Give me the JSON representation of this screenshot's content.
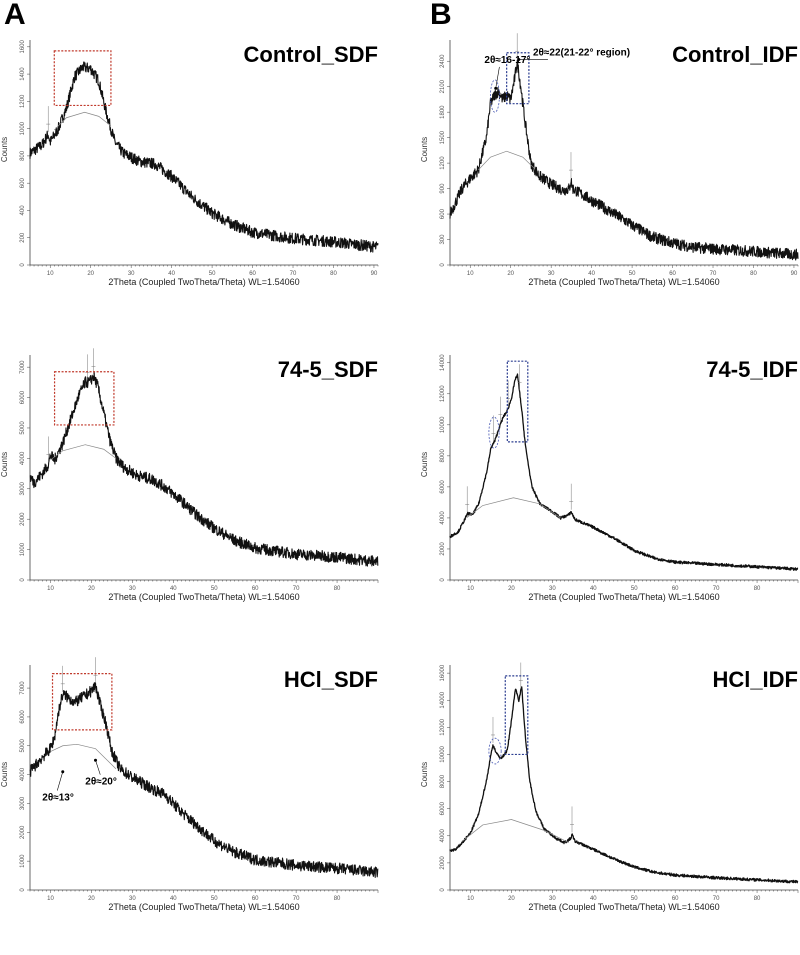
{
  "labels": {
    "A": "A",
    "B": "B"
  },
  "chart_data": [
    {
      "type": "line",
      "title": "Control_SDF",
      "xlabel": "2Theta (Coupled TwoTheta/Theta) WL=1.54060",
      "ylabel": "Counts",
      "xlim": [
        5,
        91
      ],
      "ylim": [
        0,
        1650
      ],
      "xticks": [
        10,
        20,
        30,
        40,
        50,
        60,
        70,
        80,
        90
      ],
      "yticks": [
        0,
        200,
        400,
        600,
        800,
        1000,
        1200,
        1400,
        1600
      ],
      "noisy": true,
      "series": [
        [
          5,
          820
        ],
        [
          8,
          880
        ],
        [
          9.5,
          960
        ],
        [
          10,
          900
        ],
        [
          12,
          1000
        ],
        [
          14,
          1150
        ],
        [
          16,
          1380
        ],
        [
          18,
          1450
        ],
        [
          20,
          1440
        ],
        [
          22,
          1350
        ],
        [
          24,
          1100
        ],
        [
          26,
          900
        ],
        [
          28,
          820
        ],
        [
          32,
          760
        ],
        [
          36,
          740
        ],
        [
          40,
          650
        ],
        [
          45,
          500
        ],
        [
          50,
          380
        ],
        [
          55,
          300
        ],
        [
          60,
          240
        ],
        [
          70,
          195
        ],
        [
          80,
          170
        ],
        [
          91,
          130
        ]
      ],
      "background": [
        [
          11,
          990
        ],
        [
          14,
          1080
        ],
        [
          18.5,
          1120
        ],
        [
          22,
          1090
        ],
        [
          25,
          1020
        ]
      ],
      "peak_markers": [
        9.5
      ],
      "highlight_box": {
        "x": [
          11,
          25
        ],
        "y": [
          1170,
          1570
        ],
        "color": "#c0392b"
      },
      "ellipse": null,
      "annotations": []
    },
    {
      "type": "line",
      "title": "Control_IDF",
      "xlabel": "2Theta (Coupled TwoTheta/Theta) WL=1.54060",
      "ylabel": "Counts",
      "xlim": [
        5,
        91
      ],
      "ylim": [
        0,
        2650
      ],
      "xticks": [
        10,
        20,
        30,
        40,
        50,
        60,
        70,
        80,
        90
      ],
      "yticks": [
        0,
        300,
        600,
        900,
        1200,
        1500,
        1800,
        2100,
        2400
      ],
      "noisy": true,
      "series": [
        [
          5,
          600
        ],
        [
          8,
          900
        ],
        [
          10,
          1020
        ],
        [
          12,
          1120
        ],
        [
          14,
          1500
        ],
        [
          15,
          1900
        ],
        [
          16,
          2000
        ],
        [
          17,
          2050
        ],
        [
          18,
          1950
        ],
        [
          19,
          2000
        ],
        [
          20,
          1950
        ],
        [
          21,
          2200
        ],
        [
          21.6,
          2400
        ],
        [
          22.5,
          2100
        ],
        [
          23.5,
          1700
        ],
        [
          25,
          1200
        ],
        [
          27,
          1050
        ],
        [
          30,
          950
        ],
        [
          33,
          880
        ],
        [
          34.5,
          900
        ],
        [
          34.9,
          1000
        ],
        [
          35.3,
          900
        ],
        [
          40,
          760
        ],
        [
          45,
          620
        ],
        [
          50,
          470
        ],
        [
          55,
          330
        ],
        [
          60,
          260
        ],
        [
          65,
          210
        ],
        [
          70,
          190
        ],
        [
          80,
          160
        ],
        [
          91,
          120
        ]
      ],
      "background": [
        [
          12,
          1120
        ],
        [
          15,
          1270
        ],
        [
          19,
          1340
        ],
        [
          23,
          1270
        ],
        [
          26,
          1130
        ]
      ],
      "peak_markers": [
        21.6,
        34.9
      ],
      "highlight_box": {
        "x": [
          19,
          24.5
        ],
        "y": [
          1900,
          2500
        ],
        "color": "#2c3e91"
      },
      "ellipse": {
        "x": [
          15,
          17.2
        ],
        "y": [
          1800,
          2180
        ],
        "color": "#4a5bb5"
      },
      "annotations": [
        {
          "text": "2θ≈16-17°",
          "x": 13.5,
          "y": 2380,
          "arrow_to": [
            16.3,
            2080
          ]
        },
        {
          "text": "2θ≈22(21-22° region)",
          "x": 25.5,
          "y": 2470,
          "arrow_to": [
            22,
            2420
          ]
        }
      ]
    },
    {
      "type": "line",
      "title": "74-5_SDF",
      "xlabel": "2Theta (Coupled TwoTheta/Theta) WL=1.54060",
      "ylabel": "Counts",
      "xlim": [
        5,
        90
      ],
      "ylim": [
        0,
        7400
      ],
      "xticks": [
        10,
        20,
        30,
        40,
        50,
        60,
        70,
        80
      ],
      "yticks": [
        0,
        1000,
        2000,
        3000,
        4000,
        5000,
        6000,
        7000
      ],
      "noisy": true,
      "series": [
        [
          5,
          3400
        ],
        [
          6,
          3200
        ],
        [
          8,
          3500
        ],
        [
          9.5,
          3800
        ],
        [
          10,
          4100
        ],
        [
          11,
          3950
        ],
        [
          13,
          4500
        ],
        [
          15,
          5300
        ],
        [
          17,
          6100
        ],
        [
          18.5,
          6500
        ],
        [
          19.5,
          6500
        ],
        [
          20.5,
          6700
        ],
        [
          21.5,
          6400
        ],
        [
          23,
          5500
        ],
        [
          24.5,
          4600
        ],
        [
          26,
          4000
        ],
        [
          28,
          3700
        ],
        [
          31,
          3450
        ],
        [
          35,
          3300
        ],
        [
          38,
          3050
        ],
        [
          42,
          2600
        ],
        [
          46,
          2100
        ],
        [
          50,
          1700
        ],
        [
          55,
          1300
        ],
        [
          60,
          1050
        ],
        [
          70,
          850
        ],
        [
          80,
          750
        ],
        [
          90,
          600
        ]
      ],
      "background": [
        [
          10,
          3950
        ],
        [
          13,
          4250
        ],
        [
          18.5,
          4450
        ],
        [
          23,
          4300
        ],
        [
          26,
          4000
        ]
      ],
      "peak_markers": [
        9.5,
        19,
        20.5
      ],
      "highlight_box": {
        "x": [
          11,
          25.5
        ],
        "y": [
          5100,
          6850
        ],
        "color": "#c0392b"
      },
      "ellipse": null,
      "annotations": []
    },
    {
      "type": "line",
      "title": "74-5_IDF",
      "xlabel": "2Theta (Coupled TwoTheta/Theta) WL=1.54060",
      "ylabel": "Counts",
      "xlim": [
        5,
        90
      ],
      "ylim": [
        0,
        14500
      ],
      "xticks": [
        10,
        20,
        30,
        40,
        50,
        60,
        70,
        80
      ],
      "yticks": [
        0,
        2000,
        4000,
        6000,
        8000,
        10000,
        12000,
        14000
      ],
      "noisy": false,
      "series": [
        [
          5,
          2800
        ],
        [
          7,
          3100
        ],
        [
          9,
          4100
        ],
        [
          9.3,
          4300
        ],
        [
          10.5,
          4200
        ],
        [
          12,
          4900
        ],
        [
          14,
          7000
        ],
        [
          15,
          8500
        ],
        [
          16,
          9000
        ],
        [
          17,
          9800
        ],
        [
          18,
          10500
        ],
        [
          19,
          10900
        ],
        [
          20,
          11700
        ],
        [
          21,
          13000
        ],
        [
          21.5,
          13200
        ],
        [
          22.5,
          11000
        ],
        [
          23.5,
          8500
        ],
        [
          25,
          6000
        ],
        [
          27,
          4900
        ],
        [
          30,
          4400
        ],
        [
          32,
          4000
        ],
        [
          34,
          4200
        ],
        [
          34.6,
          4400
        ],
        [
          35.5,
          3900
        ],
        [
          40,
          3400
        ],
        [
          45,
          2700
        ],
        [
          50,
          1900
        ],
        [
          55,
          1400
        ],
        [
          60,
          1150
        ],
        [
          70,
          1000
        ],
        [
          80,
          850
        ],
        [
          90,
          700
        ]
      ],
      "background": [
        [
          9,
          4000
        ],
        [
          13,
          4800
        ],
        [
          20.5,
          5300
        ],
        [
          27,
          4900
        ],
        [
          32,
          4000
        ]
      ],
      "peak_markers": [
        9.2,
        15.6,
        17.3,
        19.2,
        22,
        34.6
      ],
      "highlight_box": {
        "x": [
          19,
          24
        ],
        "y": [
          8900,
          14100
        ],
        "color": "#2c3e91"
      },
      "ellipse": {
        "x": [
          14.5,
          17
        ],
        "y": [
          8500,
          10500
        ],
        "color": "#4a5bb5"
      },
      "annotations": []
    },
    {
      "type": "line",
      "title": "HCl_SDF",
      "xlabel": "2Theta (Coupled TwoTheta/Theta) WL=1.54060",
      "ylabel": "Counts",
      "xlim": [
        5,
        90
      ],
      "ylim": [
        0,
        7800
      ],
      "xticks": [
        10,
        20,
        30,
        40,
        50,
        60,
        70,
        80
      ],
      "yticks": [
        0,
        1000,
        2000,
        3000,
        4000,
        5000,
        6000,
        7000
      ],
      "noisy": true,
      "series": [
        [
          5,
          4100
        ],
        [
          8,
          4600
        ],
        [
          10,
          4900
        ],
        [
          11,
          5300
        ],
        [
          12,
          6200
        ],
        [
          13,
          6800
        ],
        [
          14,
          6700
        ],
        [
          16,
          6500
        ],
        [
          18,
          6700
        ],
        [
          20,
          6900
        ],
        [
          21,
          7100
        ],
        [
          22,
          6500
        ],
        [
          23.5,
          5800
        ],
        [
          25,
          4800
        ],
        [
          27,
          4200
        ],
        [
          30,
          3900
        ],
        [
          35,
          3500
        ],
        [
          38,
          3300
        ],
        [
          42,
          2700
        ],
        [
          46,
          2200
        ],
        [
          50,
          1700
        ],
        [
          55,
          1300
        ],
        [
          60,
          1050
        ],
        [
          70,
          850
        ],
        [
          80,
          750
        ],
        [
          90,
          600
        ]
      ],
      "background": [
        [
          10,
          4800
        ],
        [
          13,
          5000
        ],
        [
          16.5,
          5050
        ],
        [
          21,
          4900
        ],
        [
          26,
          4200
        ]
      ],
      "peak_markers": [
        13,
        21
      ],
      "highlight_box": {
        "x": [
          10.5,
          25
        ],
        "y": [
          5550,
          7500
        ],
        "color": "#c0392b"
      },
      "ellipse": null,
      "annotations": [
        {
          "text": "2θ≈13°",
          "x": 8,
          "y": 3100,
          "arrow_to": [
            13,
            4100
          ]
        },
        {
          "text": "2θ≈20°",
          "x": 18.5,
          "y": 3650,
          "arrow_to": [
            21,
            4500
          ]
        }
      ]
    },
    {
      "type": "line",
      "title": "HCl_IDF",
      "xlabel": "2Theta (Coupled TwoTheta/Theta) WL=1.54060",
      "ylabel": "Counts",
      "xlim": [
        5,
        90
      ],
      "ylim": [
        0,
        16600
      ],
      "xticks": [
        10,
        20,
        30,
        40,
        50,
        60,
        70,
        80
      ],
      "yticks": [
        0,
        2000,
        4000,
        6000,
        8000,
        10000,
        12000,
        14000,
        16000
      ],
      "noisy": false,
      "series": [
        [
          5,
          2900
        ],
        [
          6.5,
          3000
        ],
        [
          8,
          3500
        ],
        [
          10,
          4200
        ],
        [
          12,
          5600
        ],
        [
          14,
          8200
        ],
        [
          15,
          10000
        ],
        [
          15.5,
          10700
        ],
        [
          16.5,
          10000
        ],
        [
          17.5,
          9700
        ],
        [
          19,
          10300
        ],
        [
          20,
          12500
        ],
        [
          21,
          14900
        ],
        [
          21.8,
          14000
        ],
        [
          22.5,
          15000
        ],
        [
          23.5,
          11000
        ],
        [
          24.5,
          8000
        ],
        [
          26,
          5800
        ],
        [
          28,
          4500
        ],
        [
          31,
          3800
        ],
        [
          33,
          3500
        ],
        [
          34.5,
          3800
        ],
        [
          34.8,
          4100
        ],
        [
          35.5,
          3600
        ],
        [
          40,
          3000
        ],
        [
          45,
          2300
        ],
        [
          50,
          1700
        ],
        [
          55,
          1300
        ],
        [
          60,
          1100
        ],
        [
          70,
          900
        ],
        [
          80,
          750
        ],
        [
          90,
          600
        ]
      ],
      "background": [
        [
          8,
          3600
        ],
        [
          13,
          4800
        ],
        [
          20,
          5200
        ],
        [
          28,
          4400
        ],
        [
          34,
          3500
        ]
      ],
      "peak_markers": [
        15.5,
        22.3,
        34.8
      ],
      "highlight_box": {
        "x": [
          18.5,
          24
        ],
        "y": [
          10000,
          15800
        ],
        "color": "#2c3e91"
      },
      "ellipse": {
        "x": [
          14.5,
          17.5
        ],
        "y": [
          9300,
          11200
        ],
        "color": "#4a5bb5"
      },
      "annotations": []
    }
  ]
}
